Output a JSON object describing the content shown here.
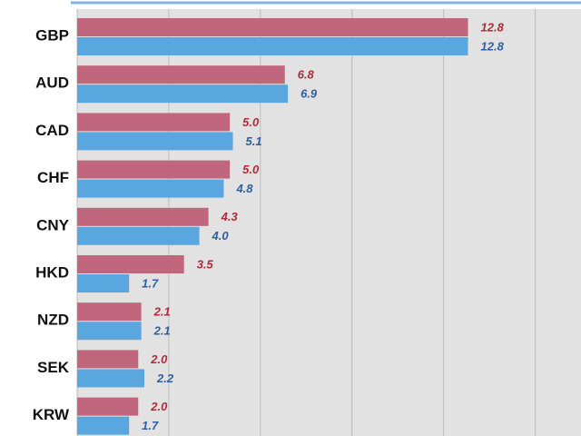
{
  "chart_data": {
    "type": "hbar",
    "categories": [
      "GBP",
      "AUD",
      "CAD",
      "CHF",
      "CNY",
      "HKD",
      "NZD",
      "SEK",
      "KRW"
    ],
    "series": [
      {
        "color": "#c0677d",
        "values": [
          12.8,
          6.8,
          5.0,
          5.0,
          4.3,
          3.5,
          2.1,
          2.0,
          2.0
        ],
        "value_labels": [
          "12.8",
          "6.8",
          "5.0",
          "5.0",
          "4.3",
          "3.5",
          "2.1",
          "2.0",
          "2.0"
        ],
        "label_color": "#b02a3a"
      },
      {
        "color": "#5aa6df",
        "values": [
          12.8,
          6.9,
          5.1,
          4.8,
          4.0,
          1.7,
          2.1,
          2.2,
          1.7
        ],
        "value_labels": [
          "12.8",
          "6.9",
          "5.1",
          "4.8",
          "4.0",
          "1.7",
          "2.1",
          "2.2",
          "1.7"
        ],
        "label_color": "#2f5f9e"
      }
    ],
    "xlim": [
      0,
      16.5
    ],
    "xticks": [
      0,
      3,
      6,
      9,
      12,
      15
    ],
    "grid": true
  }
}
